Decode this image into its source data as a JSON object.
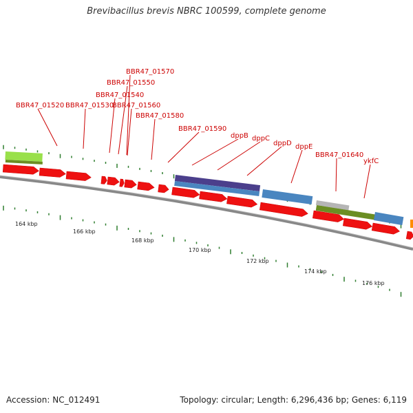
{
  "title": "Brevibacillus brevis NBRC 100599, complete genome",
  "accession": "Accession: NC_012491",
  "summary": "Topology: circular; Length: 6,296,436 bp; Genes: 6,119",
  "colors": {
    "cds": "#ee1111",
    "label": "#cc0000",
    "purple": "#4b3f8c",
    "blue": "#4a86c0",
    "lime": "#99e04a",
    "olive": "#6b8e23",
    "grey": "#b5b5b5",
    "orange": "#ff8c00",
    "backbone": "#777777",
    "tick": "#2e7d2e"
  },
  "kbp_labels": [
    "164 kbp",
    "166 kbp",
    "168 kbp",
    "170 kbp",
    "172 kbp",
    "174 kbp",
    "176 kbp"
  ],
  "gene_labels": [
    "BBR47_01520",
    "BBR47_01530",
    "BBR47_01540",
    "BBR47_01550",
    "BBR47_01560",
    "BBR47_01570",
    "BBR47_01580",
    "BBR47_01590",
    "dppB",
    "dppC",
    "dppD",
    "dppE",
    "BBR47_01640",
    "ykfC"
  ]
}
